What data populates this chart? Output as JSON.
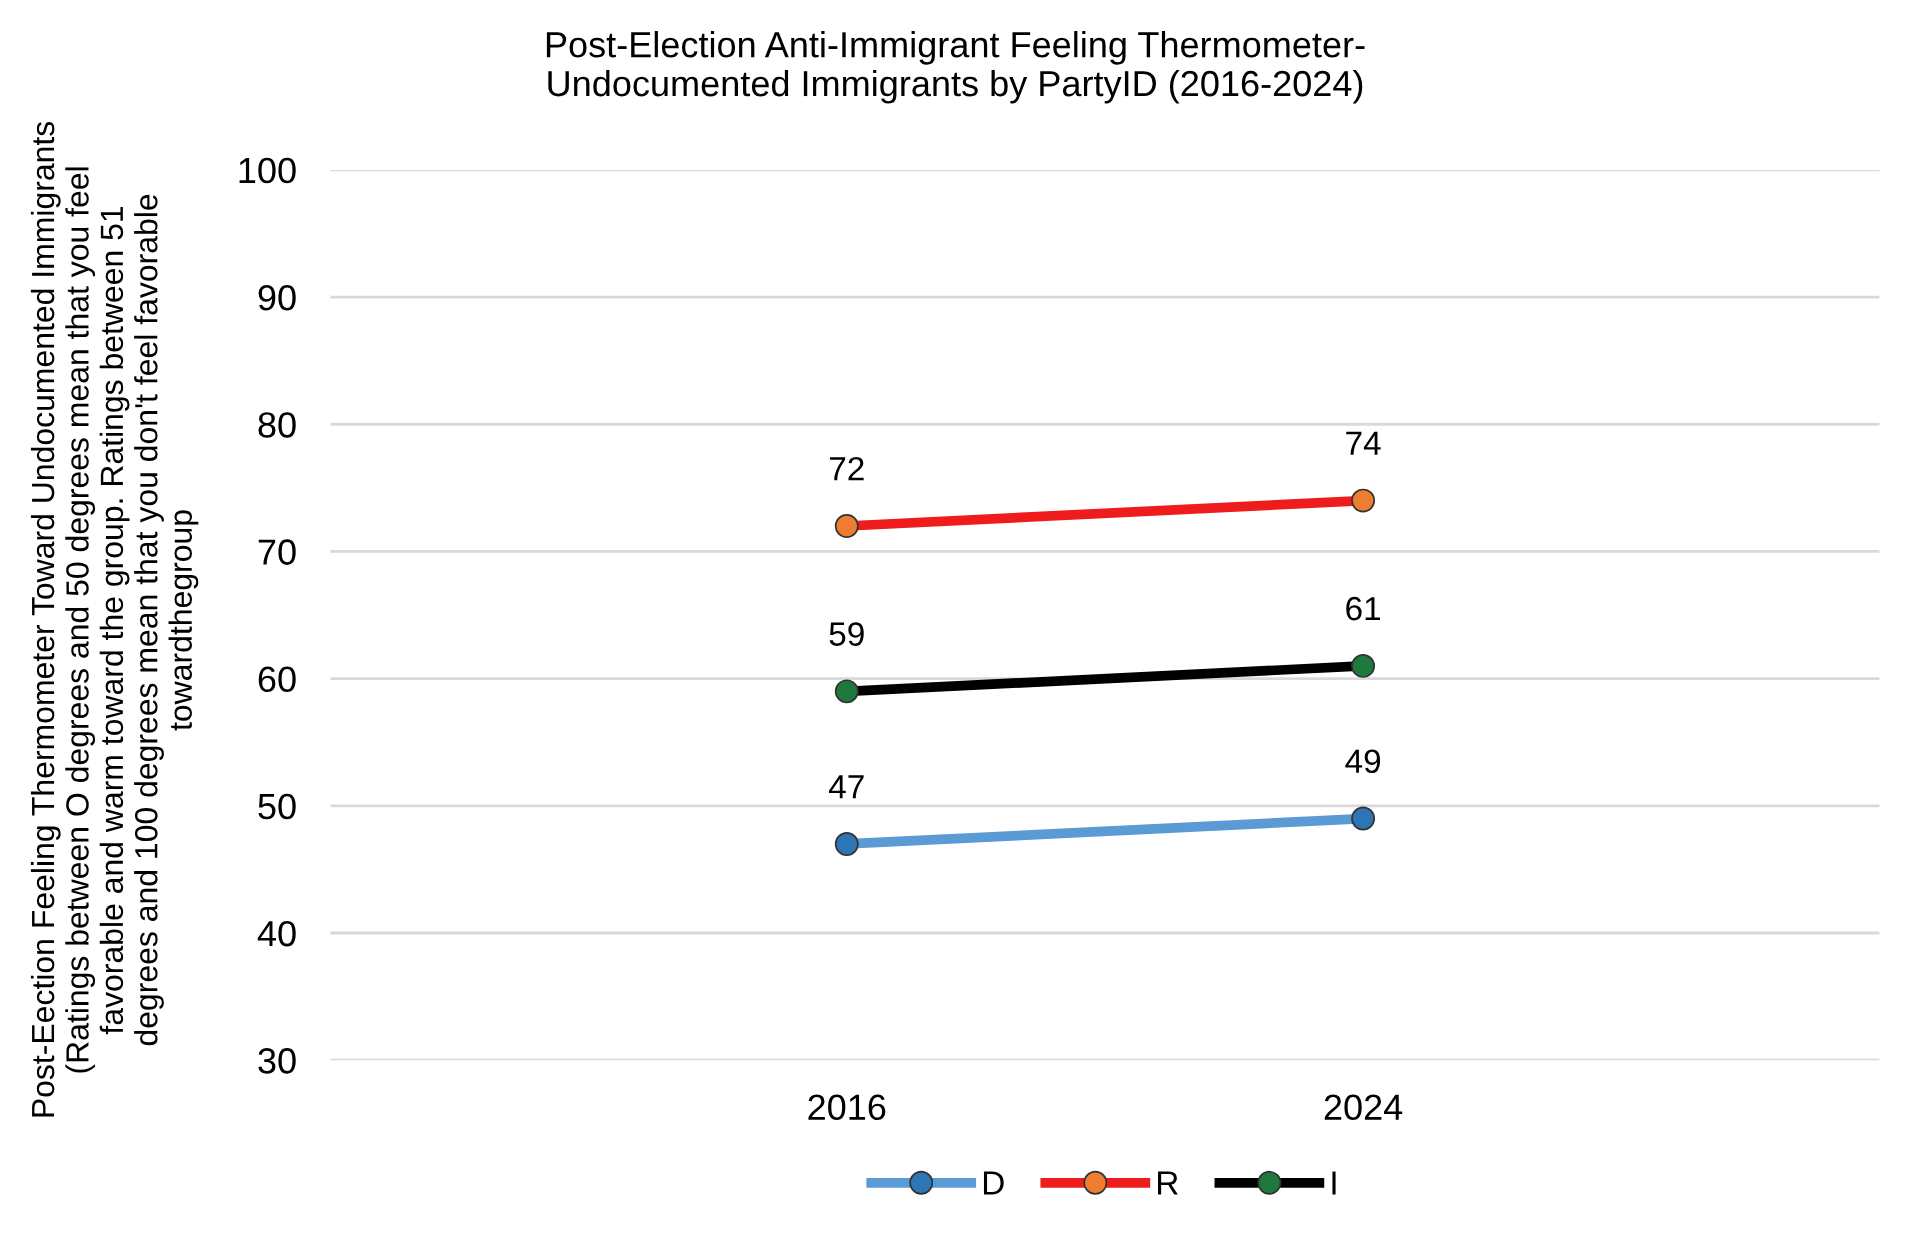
{
  "chart_data": {
    "type": "line",
    "title": "Post-Election Anti-Immigrant Feeling Thermometer-\nUndocumented Immigrants by PartyID (2016-2024)",
    "ylabel": "Post-Eection Feeling Thermometer Toward Undocumented Immigrants\n(Ratings between O degrees and 50 degrees mean that you feel\nfavorable and warm toward the group. Ratings between 51\ndegrees and 100 degrees mean that you don't feel favorable\ntowardthegroup",
    "categories": [
      "2016",
      "2024"
    ],
    "series": [
      {
        "name": "D",
        "color": "#5b9bd5",
        "colors": [
          "#2e75b6",
          "#2e75b6"
        ],
        "values": [
          47,
          49
        ]
      },
      {
        "name": "R",
        "color": "#ee1c1c",
        "colors": [
          "#ed7d31",
          "#ed7d31"
        ],
        "values": [
          72,
          74
        ]
      },
      {
        "name": "I",
        "color": "#000000",
        "colors": [
          "#1e7a3c",
          "#1e7a3c"
        ],
        "values": [
          59,
          61
        ]
      }
    ],
    "ylim": [
      30,
      100
    ],
    "yticks": [
      30,
      40,
      50,
      60,
      70,
      80,
      90,
      100
    ],
    "grid": "y",
    "legend": "bottom",
    "marker": "circle",
    "line_style": "solid",
    "data_labels": true
  }
}
